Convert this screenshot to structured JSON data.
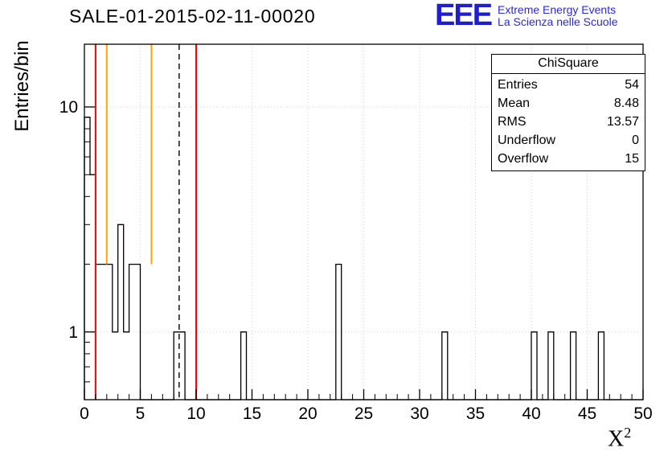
{
  "title": "SALE-01-2015-02-11-00020",
  "logo": {
    "acronym": "EEE",
    "line1": "Extreme Energy Events",
    "line2": "La Scienza nelle Scuole",
    "acronym_color": "#1e1ecf",
    "text_color": "#2b2bd6"
  },
  "stats": {
    "title": "ChiSquare",
    "rows": [
      {
        "label": "Entries",
        "value": "54"
      },
      {
        "label": "Mean",
        "value": "8.48"
      },
      {
        "label": "RMS",
        "value": "13.57"
      },
      {
        "label": "Underflow",
        "value": "0"
      },
      {
        "label": "Overflow",
        "value": "15"
      }
    ]
  },
  "axes": {
    "x": {
      "label_base": "X",
      "label_exp": "2",
      "min": 0,
      "max": 50,
      "major_step": 5,
      "minor_step": 1,
      "tick_labels": [
        "0",
        "5",
        "10",
        "15",
        "20",
        "25",
        "30",
        "35",
        "40",
        "45",
        "50"
      ]
    },
    "y": {
      "label": "Entries/bin",
      "scale": "log",
      "min": 0.5,
      "max": 19,
      "major_ticks": [
        1,
        10
      ],
      "tick_labels": [
        "1",
        "10"
      ]
    }
  },
  "chart_data": {
    "type": "bar",
    "subtype": "histogram-step-outline",
    "title": "SALE-01-2015-02-11-00020",
    "xlabel": "X^2",
    "ylabel": "Entries/bin",
    "xlim": [
      0,
      50
    ],
    "ylim": [
      0.5,
      19
    ],
    "yscale": "log",
    "grid": true,
    "bin_width": 0.5,
    "bins": [
      [
        0.0,
        9
      ],
      [
        0.5,
        5
      ],
      [
        1.0,
        2
      ],
      [
        1.5,
        2
      ],
      [
        2.0,
        2
      ],
      [
        2.5,
        1
      ],
      [
        3.0,
        3
      ],
      [
        3.5,
        1
      ],
      [
        4.0,
        2
      ],
      [
        4.5,
        2
      ],
      [
        8.0,
        1
      ],
      [
        8.5,
        1
      ],
      [
        14.0,
        1
      ],
      [
        22.5,
        2
      ],
      [
        32.0,
        1
      ],
      [
        40.0,
        1
      ],
      [
        41.5,
        1
      ],
      [
        43.5,
        1
      ],
      [
        46.0,
        1
      ]
    ],
    "markers": [
      {
        "name": "red-lower-cut",
        "x": 1.0,
        "color": "#ff0000",
        "style": "solid",
        "extent": "full"
      },
      {
        "name": "orange-lower",
        "x": 2.0,
        "color": "#ffa500",
        "style": "solid",
        "extent_to_value": 2
      },
      {
        "name": "orange-upper",
        "x": 6.0,
        "color": "#ffa500",
        "style": "solid",
        "extent_to_value": 2
      },
      {
        "name": "mean-dashed",
        "x": 8.48,
        "color": "#000000",
        "style": "dashed",
        "extent": "full"
      },
      {
        "name": "red-upper-cut",
        "x": 10.0,
        "color": "#ff0000",
        "style": "solid",
        "extent": "full"
      }
    ],
    "line_color": "#000000",
    "grid_color": "#d2d2d2"
  }
}
